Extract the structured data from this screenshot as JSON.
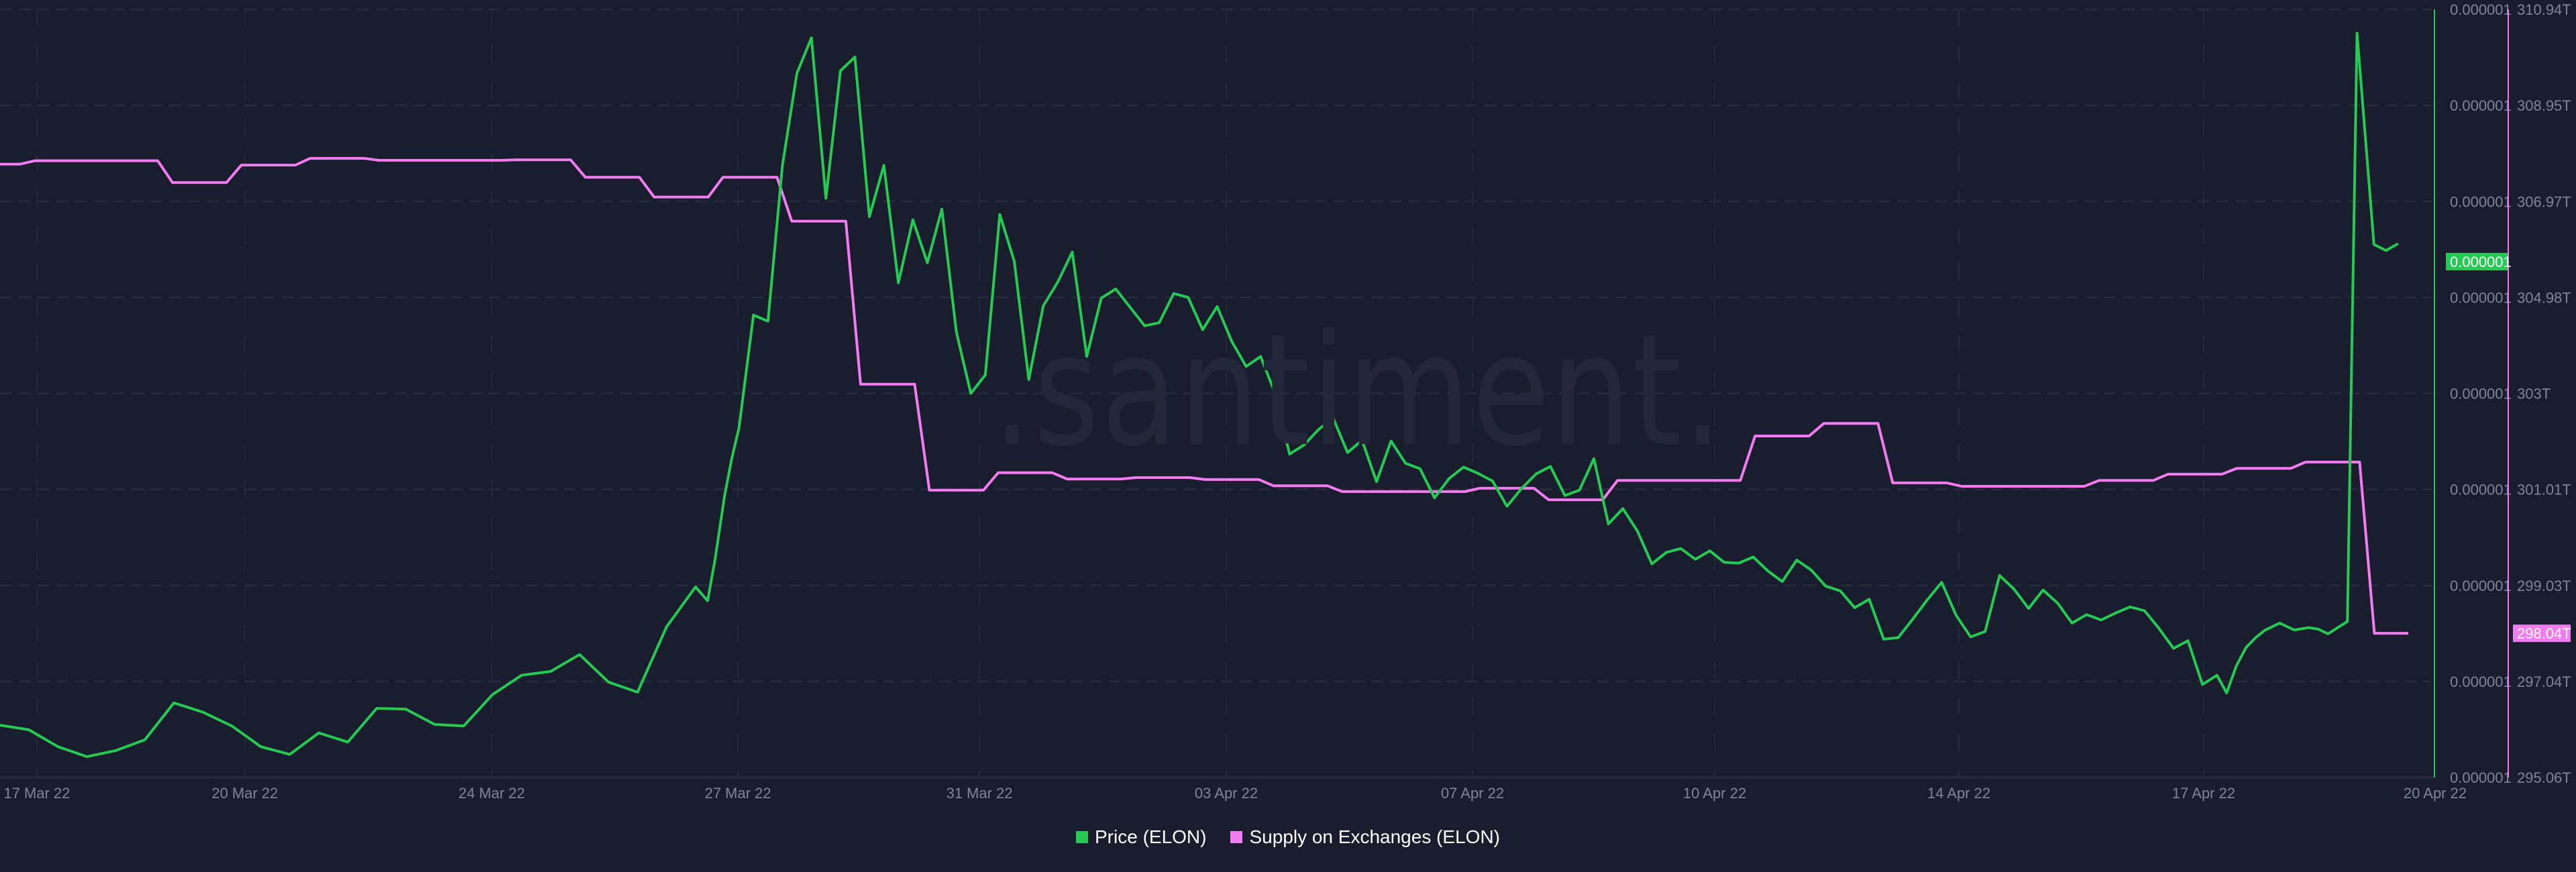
{
  "chart_data": {
    "type": "line",
    "title": "",
    "watermark": ".santiment.",
    "x_tick_labels": [
      "17 Mar 22",
      "20 Mar 22",
      "24 Mar 22",
      "27 Mar 22",
      "31 Mar 22",
      "03 Apr 22",
      "07 Apr 22",
      "10 Apr 22",
      "14 Apr 22",
      "17 Apr 22",
      "20 Apr 22"
    ],
    "x_range": [
      "16 Mar 22",
      "20 Apr 22"
    ],
    "grid": true,
    "legend_position": "bottom-center",
    "axes": {
      "price": {
        "side": "right-inner",
        "color": "#26c953",
        "tick_labels": [
          "0.000001",
          "0.000001",
          "0.000001",
          "0.000001",
          "0.000001",
          "0.000001",
          "0.000001",
          "0.000001",
          "0.000001"
        ],
        "current_value_label": "0.000001"
      },
      "supply": {
        "side": "right-outer",
        "color": "#f17cf0",
        "tick_labels": [
          "310.94T",
          "308.95T",
          "306.97T",
          "304.98T",
          "303T",
          "301.01T",
          "299.03T",
          "297.04T",
          "295.06T"
        ],
        "ylim": [
          295.06,
          310.94
        ],
        "unit": "T",
        "current_value_label": "298.04T"
      }
    },
    "series": [
      {
        "name": "Price (ELON)",
        "color": "#26c953",
        "axis": "price",
        "note": "values in screen-relative units (0 = bottom of plot, 100 = top); all axis labels round to 0.000001",
        "x": [
          0,
          1.2,
          2.4,
          3.6,
          4.8,
          6,
          7.2,
          8.4,
          9.6,
          10.8,
          12,
          13.2,
          14.4,
          15.6,
          16.8,
          18,
          19.2,
          20.4,
          21.6,
          22.8,
          24,
          25.2,
          26.4,
          27.6,
          28.8,
          29.3,
          29.6,
          30,
          30.3,
          30.6,
          31.2,
          31.8,
          32.4,
          33,
          33.6,
          34.2,
          34.8,
          35.4,
          36,
          36.6,
          37.2,
          37.8,
          38.4,
          39,
          39.6,
          40.2,
          40.8,
          41.4,
          42,
          42.6,
          43.2,
          43.8,
          44.4,
          45,
          45.6,
          46.2,
          46.8,
          47.4,
          48,
          48.6,
          49.2,
          49.8,
          50.4,
          51,
          51.6,
          52.2,
          52.8,
          53.4,
          54,
          54.6,
          55.2,
          55.8,
          56.4,
          57,
          57.6,
          58.2,
          58.8,
          59.4,
          60,
          60.6,
          61.2,
          61.8,
          62.4,
          63,
          63.6,
          64.2,
          64.8,
          65.4,
          66,
          66.6,
          67.2,
          67.8,
          68.4,
          69,
          69.6,
          70.2,
          70.8,
          71.4,
          72,
          72.6,
          73.2,
          73.8,
          74.4,
          75,
          75.6,
          76.2,
          76.8,
          77.4,
          78,
          78.6,
          79.2,
          79.8,
          80.4,
          81,
          81.6,
          82.2,
          82.8,
          83.4,
          84,
          84.6,
          85.2,
          85.8,
          86.4,
          87,
          87.6,
          88.2,
          88.8,
          89.4,
          90,
          90.6,
          91.2,
          91.8,
          92.2,
          92.6,
          93,
          93.4,
          93.8,
          94.4,
          95,
          95.6,
          96,
          96.4,
          96.8,
          97.2,
          97.6,
          98.3,
          98.8,
          99.3
        ],
        "values": [
          6.8,
          6.2,
          4.0,
          2.7,
          3.5,
          4.9,
          9.7,
          8.5,
          6.7,
          4.0,
          3.0,
          5.8,
          4.6,
          9.0,
          8.9,
          6.9,
          6.7,
          10.8,
          13.3,
          13.8,
          16.0,
          12.4,
          11.1,
          19.6,
          24.8,
          23.0,
          28.2,
          36.6,
          41.5,
          45.5,
          60.2,
          59.4,
          79.7,
          91.7,
          96.3,
          75.4,
          92.0,
          93.8,
          73.0,
          79.7,
          64.4,
          72.6,
          67.0,
          74.0,
          58.0,
          50.0,
          52.4,
          73.3,
          67.2,
          51.8,
          61.4,
          64.5,
          68.4,
          54.8,
          62.4,
          63.6,
          61.2,
          58.8,
          59.2,
          63.0,
          62.5,
          58.3,
          61.3,
          56.8,
          53.5,
          54.8,
          50.0,
          42.1,
          43.3,
          45.3,
          46.8,
          42.3,
          43.9,
          38.5,
          43.8,
          40.9,
          40.2,
          36.4,
          38.9,
          40.4,
          39.6,
          38.6,
          35.3,
          37.6,
          39.5,
          40.5,
          36.7,
          37.4,
          41.5,
          33.0,
          35.0,
          32.1,
          27.8,
          29.3,
          29.8,
          28.4,
          29.5,
          28.0,
          27.9,
          28.7,
          26.9,
          25.5,
          28.3,
          27.0,
          24.9,
          24.3,
          22.1,
          23.2,
          18.0,
          18.2,
          20.6,
          23.1,
          25.4,
          21.1,
          18.3,
          19.0,
          26.3,
          24.5,
          22.0,
          24.4,
          22.7,
          20.1,
          21.2,
          20.5,
          21.4,
          22.2,
          21.7,
          19.4,
          16.8,
          17.8,
          12.1,
          13.3,
          11.0,
          14.5,
          16.9,
          18.2,
          19.2,
          20.1,
          19.2,
          19.5,
          19.3,
          18.7,
          19.5,
          20.3,
          96.9,
          69.4,
          68.6,
          69.5
        ],
        "latest_label": "0.000001"
      },
      {
        "name": "Supply on Exchanges (ELON)",
        "color": "#f17cf0",
        "axis": "supply",
        "unit": "T",
        "x_dates_approx": [
          "16 Mar",
          "17 Mar",
          "18 Mar",
          "19 Mar",
          "20 Mar",
          "21 Mar",
          "22 Mar",
          "23 Mar",
          "24 Mar",
          "25 Mar",
          "26 Mar",
          "27 Mar",
          "28 Mar",
          "29 Mar",
          "30 Mar",
          "31 Mar",
          "01 Apr",
          "02 Apr",
          "03 Apr",
          "04 Apr",
          "05 Apr",
          "06 Apr",
          "07 Apr",
          "08 Apr",
          "09 Apr",
          "10 Apr",
          "11 Apr",
          "12 Apr",
          "13 Apr",
          "14 Apr",
          "15 Apr",
          "16 Apr",
          "17 Apr",
          "18 Apr",
          "19 Apr",
          "20 Apr"
        ],
        "values": [
          307.74,
          307.81,
          307.81,
          307.36,
          307.72,
          307.86,
          307.82,
          307.82,
          307.83,
          307.47,
          307.06,
          307.47,
          306.56,
          303.19,
          301.0,
          301.36,
          301.23,
          301.26,
          301.22,
          301.09,
          300.97,
          300.97,
          301.04,
          300.8,
          301.2,
          301.2,
          302.12,
          302.38,
          301.15,
          301.08,
          301.08,
          301.2,
          301.33,
          301.45,
          301.58,
          298.04
        ],
        "latest_label": "298.04T"
      }
    ]
  },
  "legend": {
    "items": [
      {
        "label": "Price (ELON)",
        "color": "#26c953"
      },
      {
        "label": "Supply on Exchanges (ELON)",
        "color": "#f17cf0"
      }
    ]
  },
  "colors": {
    "background": "#1a1d2d",
    "grid": "#262a3b",
    "axis_text": "#7d869b",
    "price": "#26c953",
    "supply": "#f17cf0"
  }
}
